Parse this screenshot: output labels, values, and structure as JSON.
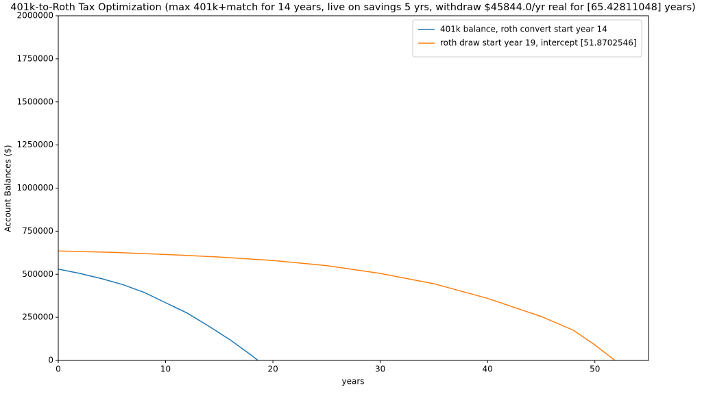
{
  "chart_data": {
    "type": "line",
    "title": "401k-to-Roth Tax Optimization (max 401k+match for 14 years, live on savings 5 yrs, withdraw $45844.0/yr real for [65.42811048] years)",
    "x_label": "years",
    "y_label": "Account Balances ($)",
    "xlim": [
      0,
      55
    ],
    "xticks": [
      0,
      10,
      20,
      30,
      40,
      50
    ],
    "ylim": [
      0,
      2000000
    ],
    "yticks": [
      0,
      250000,
      500000,
      750000,
      1000000,
      1250000,
      1500000,
      1750000,
      2000000
    ],
    "grid": false,
    "legend": "upper right",
    "series": [
      {
        "name": "401k balance, roth convert start year 14",
        "color": "#1f77b4",
        "x": [
          0,
          2,
          4,
          6,
          8,
          10,
          12,
          14,
          16,
          18,
          18.6
        ],
        "values": [
          530000,
          505000,
          475000,
          440000,
          395000,
          335000,
          275000,
          200000,
          120000,
          30000,
          0
        ]
      },
      {
        "name": "roth draw start year 19, intercept [51.8702546]",
        "color": "#ff7f0e",
        "x": [
          0,
          5,
          10,
          15,
          20,
          25,
          30,
          35,
          40,
          45,
          48,
          50,
          51.87
        ],
        "values": [
          635000,
          627000,
          615000,
          600000,
          580000,
          550000,
          505000,
          445000,
          360000,
          255000,
          175000,
          90000,
          0
        ]
      }
    ]
  }
}
